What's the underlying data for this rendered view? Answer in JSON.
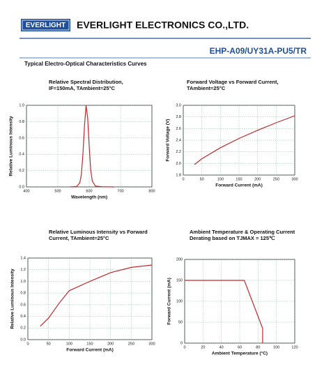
{
  "header": {
    "logo": "EVERLIGHT",
    "company": "EVERLIGHT ELECTRONICS CO.,LTD.",
    "part_number": "EHP-A09/UY31A-PU5/TR",
    "section_title": "Typical Electro-Optical Characteristics Curves"
  },
  "chart_data": [
    {
      "type": "line",
      "title": [
        "Relative Spectral Distribution,",
        "IF=150mA, TAmbient=25°C"
      ],
      "x_label": "Wavelength (nm)",
      "y_label": "Relative Luminous Intensity",
      "x": [
        540,
        560,
        570,
        575,
        580,
        585,
        590,
        595,
        600,
        605,
        610,
        620,
        640,
        680
      ],
      "values": [
        0,
        0.005,
        0.05,
        0.15,
        0.4,
        0.75,
        1.0,
        0.85,
        0.5,
        0.2,
        0.07,
        0.01,
        0.002,
        0
      ],
      "color": "#c0282d",
      "xlim": [
        400,
        800
      ],
      "xticks": [
        400,
        500,
        600,
        700,
        800
      ],
      "ylim": [
        0,
        1
      ],
      "yticks": [
        {
          "value": 0,
          "label": "0.0"
        },
        0.2,
        0.4,
        0.6,
        0.8,
        {
          "value": 1,
          "label": "1.0"
        }
      ],
      "grid": true
    },
    {
      "type": "line",
      "title": [
        "Forward Voltage vs Forward Current,",
        "TAmbient=25°C"
      ],
      "x_label": "Forward Current (mA)",
      "y_label": "Forward Voltage (V)",
      "x": [
        30,
        50,
        100,
        150,
        200,
        250,
        300
      ],
      "values": [
        1.98,
        2.08,
        2.27,
        2.43,
        2.57,
        2.7,
        2.82
      ],
      "color": "#c0282d",
      "xlim": [
        0,
        300
      ],
      "xticks": [
        0,
        50,
        100,
        150,
        200,
        250,
        300
      ],
      "ylim": [
        1.8,
        3
      ],
      "yticks": [
        1.8,
        {
          "value": 2,
          "label": "2.0"
        },
        2.2,
        2.4,
        2.6,
        2.8,
        {
          "value": 3,
          "label": "3.0"
        }
      ],
      "grid": true
    },
    {
      "type": "line",
      "title": [
        "Relative Luminous Intensity vs Forward",
        "Current, TAmbient=25°C"
      ],
      "x_label": "Forward Current (mA)",
      "y_label": "Relative Luminous Intensity",
      "x": [
        30,
        50,
        75,
        100,
        150,
        200,
        250,
        300
      ],
      "values": [
        0.23,
        0.37,
        0.62,
        0.84,
        1.0,
        1.15,
        1.24,
        1.28
      ],
      "color": "#c0282d",
      "xlim": [
        0,
        300
      ],
      "xticks": [
        0,
        50,
        100,
        150,
        200,
        250,
        300
      ],
      "ylim": [
        0,
        1.4
      ],
      "yticks": [
        {
          "value": 0,
          "label": "0.0"
        },
        0.2,
        0.4,
        0.6,
        0.8,
        {
          "value": 1,
          "label": "1.0"
        },
        1.2,
        1.4
      ],
      "grid": true
    },
    {
      "type": "line",
      "title": [
        "Ambient Temperature & Operating Current",
        "Derating based on TJMAX = 125℃"
      ],
      "x_label": "Ambient Temperature (°C)",
      "y_label": "Forward Current (mA)",
      "x": [
        0,
        65,
        85,
        85
      ],
      "values": [
        150,
        150,
        35,
        0
      ],
      "color": "#c0282d",
      "xlim": [
        0,
        120
      ],
      "xticks": [
        0,
        20,
        40,
        60,
        80,
        100,
        120
      ],
      "ylim": [
        0,
        200
      ],
      "yticks": [
        0,
        50,
        100,
        150,
        200
      ],
      "grid": true
    }
  ]
}
